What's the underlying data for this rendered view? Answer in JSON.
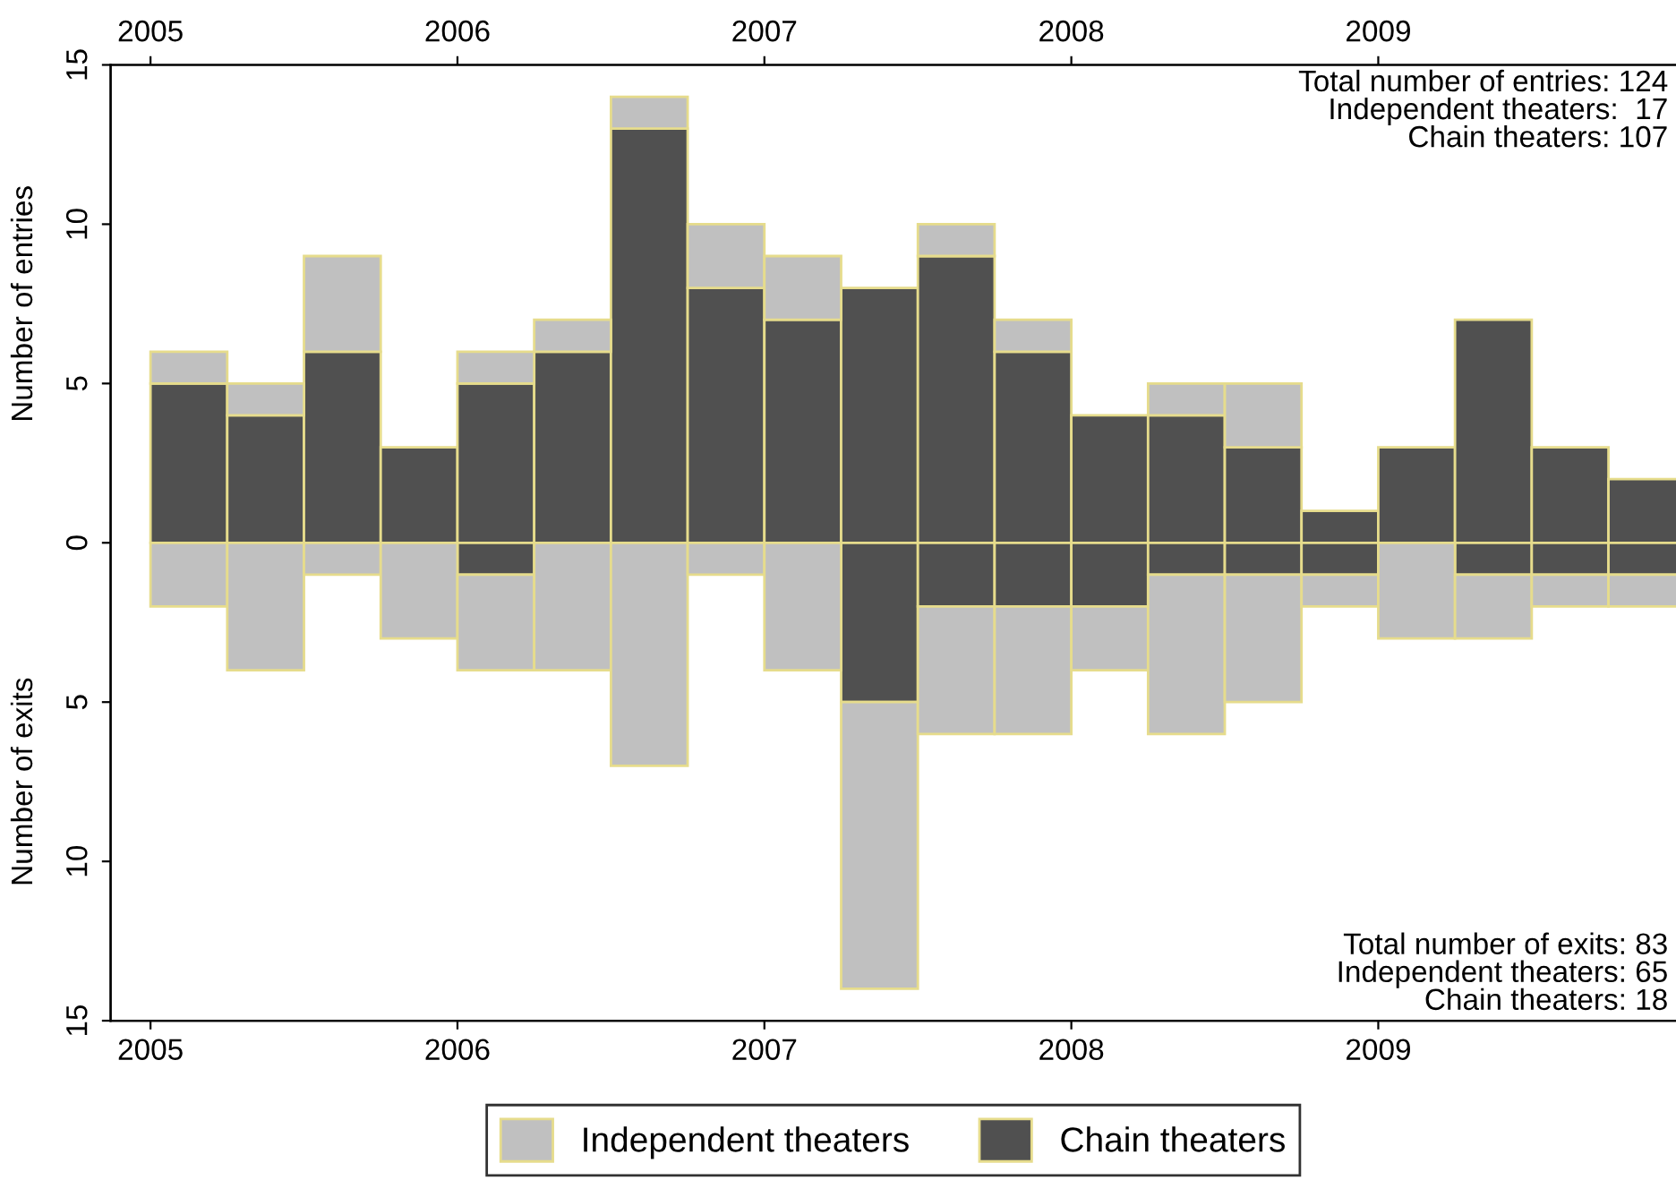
{
  "chart_data": {
    "type": "bar",
    "stacked": true,
    "ylabel": "Number of entries",
    "x": [
      2005.125,
      2005.375,
      2005.625,
      2005.875,
      2006.125,
      2006.375,
      2006.625,
      2006.875,
      2007.125,
      2007.375,
      2007.625,
      2007.875,
      2008.125,
      2008.375,
      2008.625,
      2008.875,
      2009.125,
      2009.375,
      2009.625,
      2009.875
    ],
    "series": [
      {
        "name": "Chain theaters",
        "color": "#505050",
        "values": [
          5,
          4,
          6,
          3,
          5,
          6,
          13,
          8,
          7,
          8,
          9,
          6,
          4,
          4,
          3,
          1,
          3,
          7,
          3,
          2
        ]
      },
      {
        "name": "Independent theaters",
        "color": "#c0c0c0",
        "values": [
          1,
          1,
          3,
          0,
          1,
          1,
          1,
          2,
          2,
          0,
          1,
          1,
          0,
          1,
          2,
          0,
          0,
          0,
          0,
          0
        ]
      },
      {
        "color": "#505050",
        "values": [
          0,
          0,
          0,
          0,
          -1,
          0,
          0,
          0,
          0,
          -5,
          -2,
          -2,
          -2,
          -1,
          -1,
          -1,
          0,
          -1,
          -1,
          -1
        ]
      },
      {
        "color": "#c0c0c0",
        "values": [
          -2,
          -4,
          -1,
          -3,
          -3,
          -4,
          -7,
          -1,
          -4,
          -9,
          -4,
          -4,
          -2,
          -5,
          -4,
          -1,
          -3,
          -2,
          -1,
          -1
        ]
      }
    ],
    "xlim": [
      2004.87,
      2009.97
    ],
    "xticks": [
      2005,
      2006,
      2007,
      2008,
      2009
    ],
    "x2lim": [
      2004.87,
      2009.97
    ],
    "x2ticks": [
      2005,
      2006,
      2007,
      2008,
      2009
    ],
    "ylim": [
      -15,
      15
    ],
    "yticks": [
      {
        "value": -15,
        "label": "15"
      },
      {
        "value": -10,
        "label": "10"
      },
      {
        "value": -5,
        "label": "5"
      },
      0,
      5,
      10,
      15
    ],
    "annotations": [
      "Number of exits",
      "Total number of entries: 124\nIndependent theaters:  17\nChain theaters: 107",
      "Total number of exits: 83\nIndependent theaters: 65\nChain theaters: 18"
    ],
    "legend": "bottom",
    "grid": false
  }
}
